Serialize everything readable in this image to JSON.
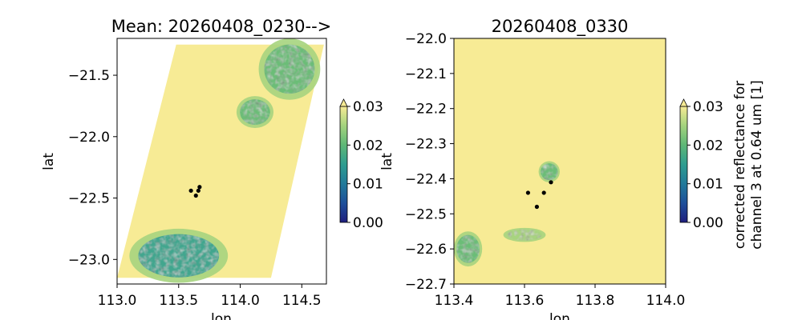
{
  "chart_data": [
    {
      "type": "heatmap",
      "title": "Mean: 20260408_0230-->",
      "xlabel": "lon",
      "ylabel": "lat",
      "xlim": [
        113.0,
        114.7
      ],
      "ylim": [
        -23.2,
        -21.2
      ],
      "xticks": [
        113.0,
        113.5,
        114.0,
        114.5
      ],
      "xtick_labels": [
        "113.0",
        "113.5",
        "114.0",
        "114.5"
      ],
      "yticks": [
        -21.5,
        -22.0,
        -22.5,
        -23.0
      ],
      "ytick_labels": [
        "−21.5",
        "−22.0",
        "−22.5",
        "−23.0"
      ],
      "swath_corners": [
        [
          113.48,
          -21.25
        ],
        [
          114.68,
          -21.25
        ],
        [
          114.25,
          -23.15
        ],
        [
          113.0,
          -23.15
        ]
      ],
      "cloud_regions": [
        {
          "name": "north-east",
          "lon": 114.4,
          "lat": -21.45,
          "rx": 0.25,
          "ry": 0.25,
          "value": 0.018
        },
        {
          "name": "centre-north",
          "lon": 114.12,
          "lat": -21.8,
          "rx": 0.15,
          "ry": 0.13,
          "value": 0.02
        },
        {
          "name": "south-west",
          "lon": 113.5,
          "lat": -22.97,
          "rx": 0.4,
          "ry": 0.22,
          "value": 0.015
        }
      ],
      "points": [
        {
          "lon": 113.6,
          "lat": -22.44
        },
        {
          "lon": 113.64,
          "lat": -22.48
        },
        {
          "lon": 113.66,
          "lat": -22.44
        },
        {
          "lon": 113.67,
          "lat": -22.41
        }
      ],
      "colorbar": {
        "range": [
          0.0,
          0.03
        ],
        "ticks": [
          "0.00",
          "0.01",
          "0.02",
          "0.03"
        ],
        "extend": "max",
        "label": ""
      }
    },
    {
      "type": "heatmap",
      "title": "20260408_0330",
      "xlabel": "lon",
      "ylabel": "lat",
      "xlim": [
        113.4,
        114.0
      ],
      "ylim": [
        -22.7,
        -22.0
      ],
      "xticks": [
        113.4,
        113.6,
        113.8,
        114.0
      ],
      "xtick_labels": [
        "113.4",
        "113.6",
        "113.8",
        "114.0"
      ],
      "yticks": [
        -22.0,
        -22.1,
        -22.2,
        -22.3,
        -22.4,
        -22.5,
        -22.6,
        -22.7
      ],
      "ytick_labels": [
        "−22.0",
        "−22.1",
        "−22.2",
        "−22.3",
        "−22.4",
        "−22.5",
        "−22.6",
        "−22.7"
      ],
      "cloud_regions": [
        {
          "name": "centre",
          "lon": 113.67,
          "lat": -22.38,
          "rx": 0.03,
          "ry": 0.03,
          "value": 0.022
        },
        {
          "name": "south-west",
          "lon": 113.44,
          "lat": -22.6,
          "rx": 0.04,
          "ry": 0.05,
          "value": 0.021
        },
        {
          "name": "south-centre",
          "lon": 113.6,
          "lat": -22.56,
          "rx": 0.06,
          "ry": 0.02,
          "value": 0.023
        }
      ],
      "points": [
        {
          "lon": 113.61,
          "lat": -22.44
        },
        {
          "lon": 113.635,
          "lat": -22.48
        },
        {
          "lon": 113.655,
          "lat": -22.44
        },
        {
          "lon": 113.675,
          "lat": -22.41
        }
      ],
      "colorbar": {
        "range": [
          0.0,
          0.03
        ],
        "ticks": [
          "0.00",
          "0.01",
          "0.02",
          "0.03"
        ],
        "extend": "max",
        "label": "corrected reflectance for channel 3 at 0.64 um [1]"
      }
    }
  ],
  "colors": {
    "background_fill": "#f7eb95",
    "colormap": [
      "#1f1e7d",
      "#1e4e9a",
      "#21799a",
      "#2e9d90",
      "#5fb876",
      "#a6d47e",
      "#f7eb95"
    ],
    "points": "#000000"
  }
}
